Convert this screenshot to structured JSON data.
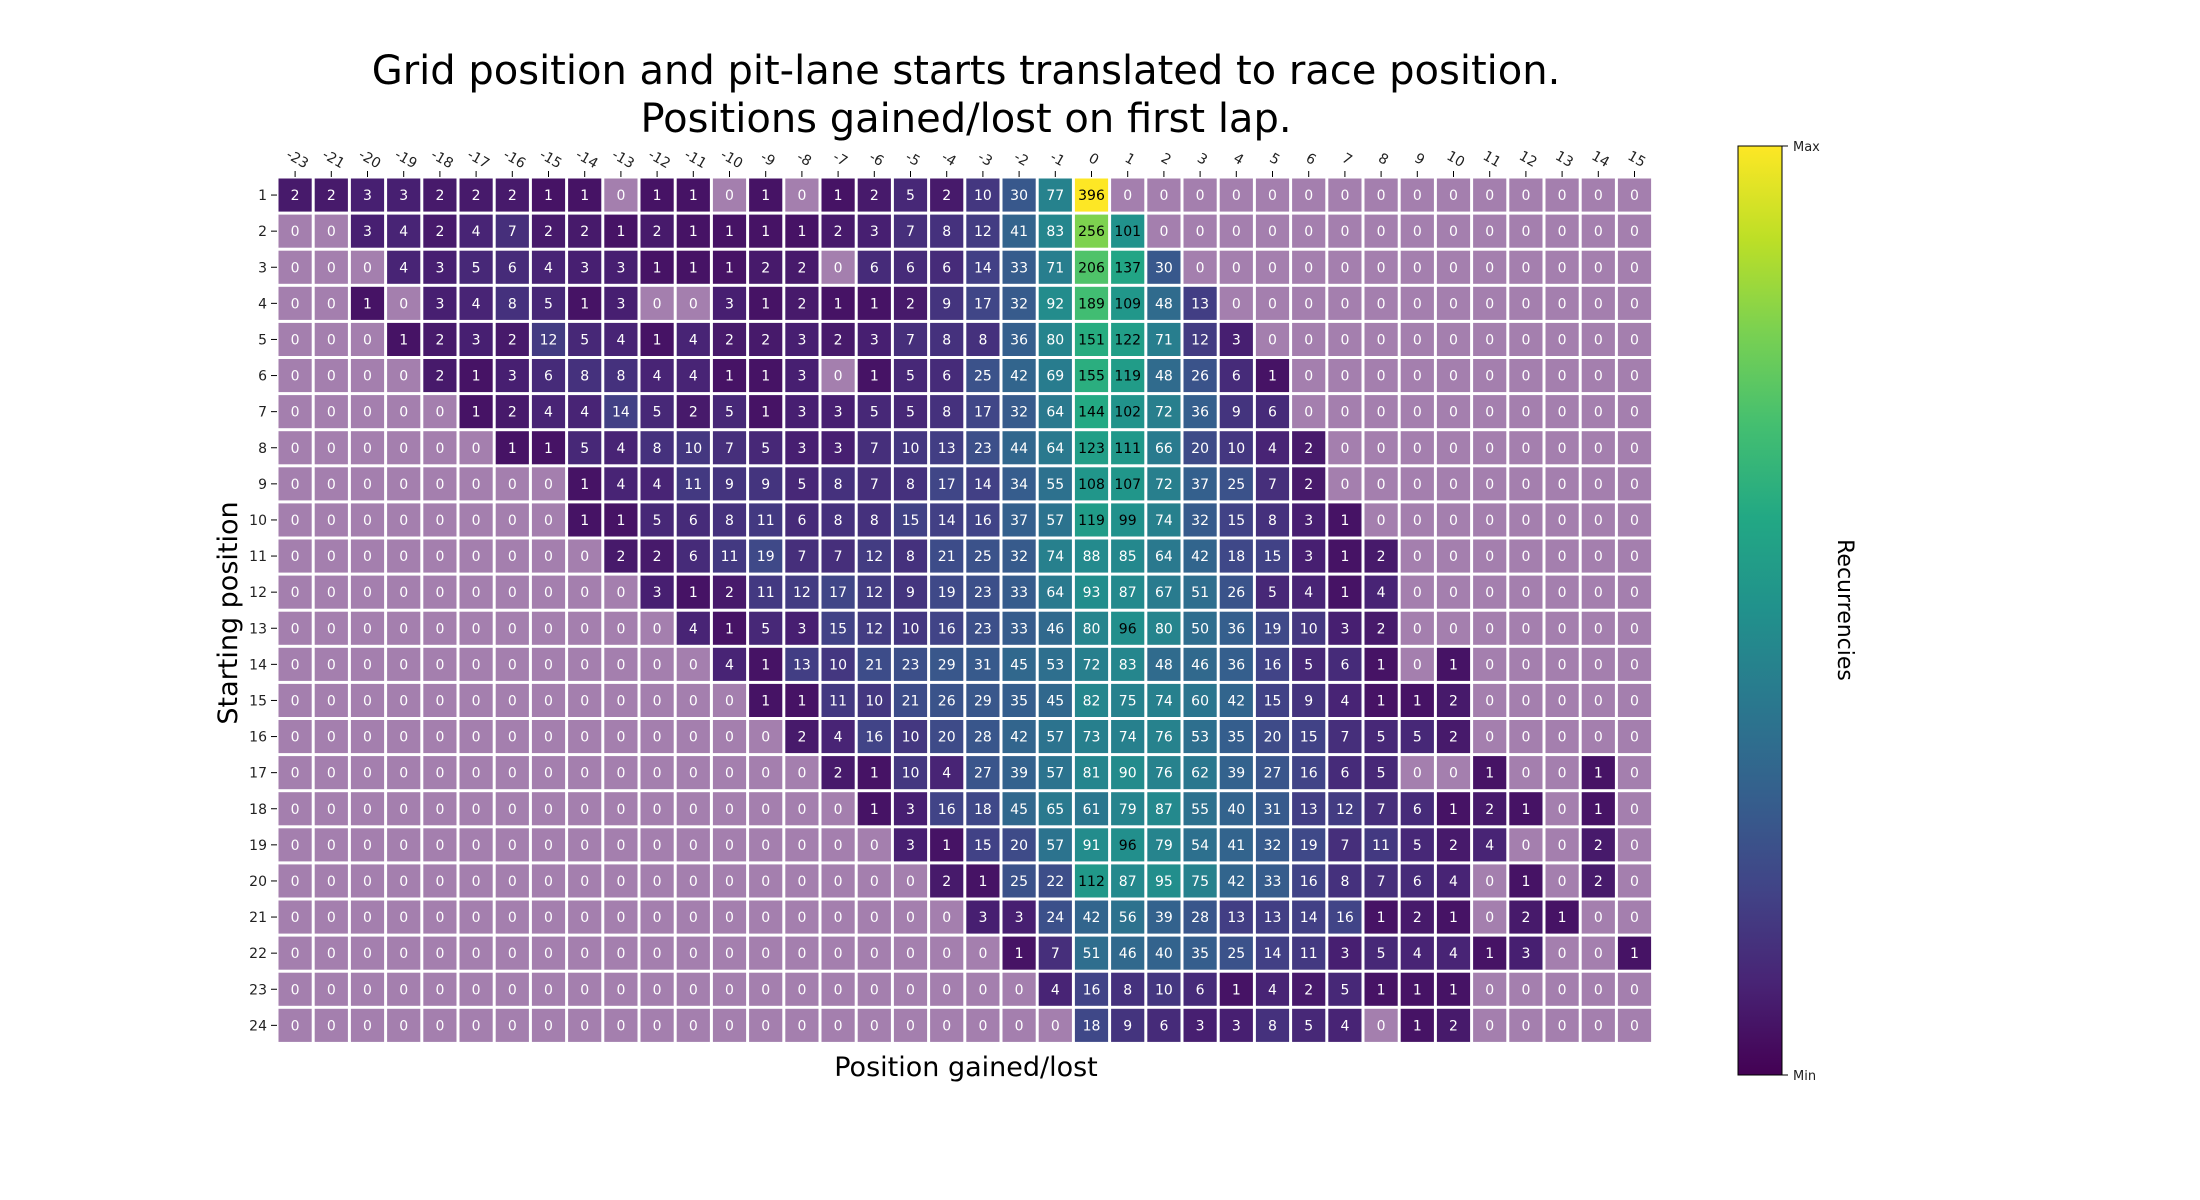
{
  "chart_data": {
    "type": "heatmap",
    "title_line1": "Grid position and pit-lane starts translated to race position.",
    "title_line2": "Positions gained/lost on first lap.",
    "xlabel": "Position gained/lost",
    "ylabel": "Starting position",
    "x_categories": [
      "-23",
      "-21",
      "-20",
      "-19",
      "-18",
      "-17",
      "-16",
      "-15",
      "-14",
      "-13",
      "-12",
      "-11",
      "-10",
      "-9",
      "-8",
      "-7",
      "-6",
      "-5",
      "-4",
      "-3",
      "-2",
      "-1",
      "0",
      "1",
      "2",
      "3",
      "4",
      "5",
      "6",
      "7",
      "8",
      "9",
      "10",
      "11",
      "12",
      "13",
      "14",
      "15"
    ],
    "y_categories": [
      "1",
      "2",
      "3",
      "4",
      "5",
      "6",
      "7",
      "8",
      "9",
      "10",
      "11",
      "12",
      "13",
      "14",
      "15",
      "16",
      "17",
      "18",
      "19",
      "20",
      "21",
      "22",
      "23",
      "24"
    ],
    "values": [
      [
        2,
        2,
        3,
        3,
        2,
        2,
        2,
        1,
        1,
        0,
        1,
        1,
        0,
        1,
        0,
        1,
        2,
        5,
        2,
        10,
        30,
        77,
        396,
        0,
        0,
        0,
        0,
        0,
        0,
        0,
        0,
        0,
        0,
        0,
        0,
        0,
        0,
        0
      ],
      [
        0,
        0,
        3,
        4,
        2,
        4,
        7,
        2,
        2,
        1,
        2,
        1,
        1,
        1,
        1,
        2,
        3,
        7,
        8,
        12,
        41,
        83,
        256,
        101,
        0,
        0,
        0,
        0,
        0,
        0,
        0,
        0,
        0,
        0,
        0,
        0,
        0,
        0
      ],
      [
        0,
        0,
        0,
        4,
        3,
        5,
        6,
        4,
        3,
        3,
        1,
        1,
        1,
        2,
        2,
        0,
        6,
        6,
        6,
        14,
        33,
        71,
        206,
        137,
        30,
        0,
        0,
        0,
        0,
        0,
        0,
        0,
        0,
        0,
        0,
        0,
        0,
        0
      ],
      [
        0,
        0,
        1,
        0,
        3,
        4,
        8,
        5,
        1,
        3,
        0,
        0,
        3,
        1,
        2,
        1,
        1,
        2,
        9,
        17,
        32,
        92,
        189,
        109,
        48,
        13,
        0,
        0,
        0,
        0,
        0,
        0,
        0,
        0,
        0,
        0,
        0,
        0
      ],
      [
        0,
        0,
        0,
        1,
        2,
        3,
        2,
        12,
        5,
        4,
        1,
        4,
        2,
        2,
        3,
        2,
        3,
        7,
        8,
        8,
        36,
        80,
        151,
        122,
        71,
        12,
        3,
        0,
        0,
        0,
        0,
        0,
        0,
        0,
        0,
        0,
        0,
        0
      ],
      [
        0,
        0,
        0,
        0,
        2,
        1,
        3,
        6,
        8,
        8,
        4,
        4,
        1,
        1,
        3,
        0,
        1,
        5,
        6,
        25,
        42,
        69,
        155,
        119,
        48,
        26,
        6,
        1,
        0,
        0,
        0,
        0,
        0,
        0,
        0,
        0,
        0,
        0
      ],
      [
        0,
        0,
        0,
        0,
        0,
        1,
        2,
        4,
        4,
        14,
        5,
        2,
        5,
        1,
        3,
        3,
        5,
        5,
        8,
        17,
        32,
        64,
        144,
        102,
        72,
        36,
        9,
        6,
        0,
        0,
        0,
        0,
        0,
        0,
        0,
        0,
        0,
        0
      ],
      [
        0,
        0,
        0,
        0,
        0,
        0,
        1,
        1,
        5,
        4,
        8,
        10,
        7,
        5,
        3,
        3,
        7,
        10,
        13,
        23,
        44,
        64,
        123,
        111,
        66,
        20,
        10,
        4,
        2,
        0,
        0,
        0,
        0,
        0,
        0,
        0,
        0,
        0
      ],
      [
        0,
        0,
        0,
        0,
        0,
        0,
        0,
        0,
        1,
        4,
        4,
        11,
        9,
        9,
        5,
        8,
        7,
        8,
        17,
        14,
        34,
        55,
        108,
        107,
        72,
        37,
        25,
        7,
        2,
        0,
        0,
        0,
        0,
        0,
        0,
        0,
        0,
        0
      ],
      [
        0,
        0,
        0,
        0,
        0,
        0,
        0,
        0,
        1,
        1,
        5,
        6,
        8,
        11,
        6,
        8,
        8,
        15,
        14,
        16,
        37,
        57,
        119,
        99,
        74,
        32,
        15,
        8,
        3,
        1,
        0,
        0,
        0,
        0,
        0,
        0,
        0,
        0
      ],
      [
        0,
        0,
        0,
        0,
        0,
        0,
        0,
        0,
        0,
        2,
        2,
        6,
        11,
        19,
        7,
        7,
        12,
        8,
        21,
        25,
        32,
        74,
        88,
        85,
        64,
        42,
        18,
        15,
        3,
        1,
        2,
        0,
        0,
        0,
        0,
        0,
        0,
        0
      ],
      [
        0,
        0,
        0,
        0,
        0,
        0,
        0,
        0,
        0,
        0,
        3,
        1,
        2,
        11,
        12,
        17,
        12,
        9,
        19,
        23,
        33,
        64,
        93,
        87,
        67,
        51,
        26,
        5,
        4,
        1,
        4,
        0,
        0,
        0,
        0,
        0,
        0,
        0
      ],
      [
        0,
        0,
        0,
        0,
        0,
        0,
        0,
        0,
        0,
        0,
        0,
        4,
        1,
        5,
        3,
        15,
        12,
        10,
        16,
        23,
        33,
        46,
        80,
        96,
        80,
        50,
        36,
        19,
        10,
        3,
        2,
        0,
        0,
        0,
        0,
        0,
        0,
        0
      ],
      [
        0,
        0,
        0,
        0,
        0,
        0,
        0,
        0,
        0,
        0,
        0,
        0,
        4,
        1,
        13,
        10,
        21,
        23,
        29,
        31,
        45,
        53,
        72,
        83,
        48,
        46,
        36,
        16,
        5,
        6,
        1,
        0,
        1,
        0,
        0,
        0,
        0,
        0
      ],
      [
        0,
        0,
        0,
        0,
        0,
        0,
        0,
        0,
        0,
        0,
        0,
        0,
        0,
        1,
        1,
        11,
        10,
        21,
        26,
        29,
        35,
        45,
        82,
        75,
        74,
        60,
        42,
        15,
        9,
        4,
        1,
        1,
        2,
        0,
        0,
        0,
        0,
        0
      ],
      [
        0,
        0,
        0,
        0,
        0,
        0,
        0,
        0,
        0,
        0,
        0,
        0,
        0,
        0,
        2,
        4,
        16,
        10,
        20,
        28,
        42,
        57,
        73,
        74,
        76,
        53,
        35,
        20,
        15,
        7,
        5,
        5,
        2,
        0,
        0,
        0,
        0,
        0
      ],
      [
        0,
        0,
        0,
        0,
        0,
        0,
        0,
        0,
        0,
        0,
        0,
        0,
        0,
        0,
        0,
        2,
        1,
        10,
        4,
        27,
        39,
        57,
        81,
        90,
        76,
        62,
        39,
        27,
        16,
        6,
        5,
        0,
        0,
        1,
        0,
        0,
        1,
        0
      ],
      [
        0,
        0,
        0,
        0,
        0,
        0,
        0,
        0,
        0,
        0,
        0,
        0,
        0,
        0,
        0,
        0,
        1,
        3,
        16,
        18,
        45,
        65,
        61,
        79,
        87,
        55,
        40,
        31,
        13,
        12,
        7,
        6,
        1,
        2,
        1,
        0,
        1,
        0
      ],
      [
        0,
        0,
        0,
        0,
        0,
        0,
        0,
        0,
        0,
        0,
        0,
        0,
        0,
        0,
        0,
        0,
        0,
        3,
        1,
        15,
        20,
        57,
        91,
        96,
        79,
        54,
        41,
        32,
        19,
        7,
        11,
        5,
        2,
        4,
        0,
        0,
        2,
        0
      ],
      [
        0,
        0,
        0,
        0,
        0,
        0,
        0,
        0,
        0,
        0,
        0,
        0,
        0,
        0,
        0,
        0,
        0,
        0,
        2,
        1,
        25,
        22,
        112,
        87,
        95,
        75,
        42,
        33,
        16,
        8,
        7,
        6,
        4,
        0,
        1,
        0,
        2,
        0
      ],
      [
        0,
        0,
        0,
        0,
        0,
        0,
        0,
        0,
        0,
        0,
        0,
        0,
        0,
        0,
        0,
        0,
        0,
        0,
        0,
        3,
        3,
        24,
        42,
        56,
        39,
        28,
        13,
        13,
        14,
        16,
        1,
        2,
        1,
        0,
        2,
        1,
        0,
        0
      ],
      [
        0,
        0,
        0,
        0,
        0,
        0,
        0,
        0,
        0,
        0,
        0,
        0,
        0,
        0,
        0,
        0,
        0,
        0,
        0,
        0,
        1,
        7,
        51,
        46,
        40,
        35,
        25,
        14,
        11,
        3,
        5,
        4,
        4,
        1,
        3,
        0,
        0,
        1
      ],
      [
        0,
        0,
        0,
        0,
        0,
        0,
        0,
        0,
        0,
        0,
        0,
        0,
        0,
        0,
        0,
        0,
        0,
        0,
        0,
        0,
        0,
        4,
        16,
        8,
        10,
        6,
        1,
        4,
        2,
        5,
        1,
        1,
        1,
        0,
        0,
        0,
        0,
        0
      ],
      [
        0,
        0,
        0,
        0,
        0,
        0,
        0,
        0,
        0,
        0,
        0,
        0,
        0,
        0,
        0,
        0,
        0,
        0,
        0,
        0,
        0,
        0,
        18,
        9,
        6,
        3,
        3,
        8,
        5,
        4,
        0,
        1,
        2,
        0,
        0,
        0,
        0,
        0
      ]
    ],
    "colorbar": {
      "label": "Recurrencies",
      "max_label": "Max",
      "min_label": "Min",
      "colormap": "viridis"
    },
    "zero_cell_color": "#a47fae",
    "annotations": "cell counts printed in each cell",
    "legend": "colorbar on right"
  }
}
